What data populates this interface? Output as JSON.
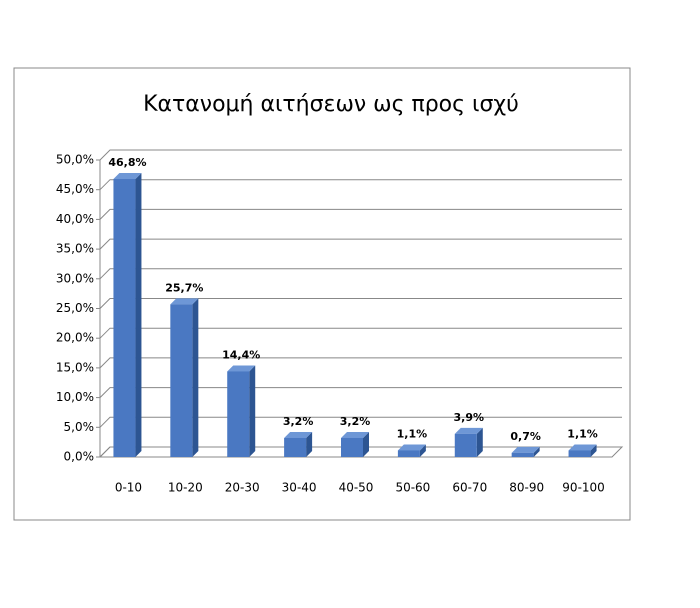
{
  "chart_data": {
    "type": "bar",
    "title": "Κατανομή αιτήσεων ως προς ισχύ",
    "categories": [
      "0-10",
      "10-20",
      "20-30",
      "30-40",
      "40-50",
      "50-60",
      "60-70",
      "80-90",
      "90-100"
    ],
    "values": [
      46.8,
      25.7,
      14.4,
      3.2,
      3.2,
      1.1,
      3.9,
      0.7,
      1.1
    ],
    "value_labels": [
      "46,8%",
      "25,7%",
      "14,4%",
      "3,2%",
      "3,2%",
      "1,1%",
      "3,9%",
      "0,7%",
      "1,1%"
    ],
    "color": "#4a78c2",
    "ylim": [
      0,
      50
    ],
    "yticks": [
      {
        "value": 0,
        "label": "0,0%"
      },
      {
        "value": 5,
        "label": "5,0%"
      },
      {
        "value": 10,
        "label": "10,0%"
      },
      {
        "value": 15,
        "label": "15,0%"
      },
      {
        "value": 20,
        "label": "20,0%"
      },
      {
        "value": 25,
        "label": "25,0%"
      },
      {
        "value": 30,
        "label": "30,0%"
      },
      {
        "value": 35,
        "label": "35,0%"
      },
      {
        "value": 40,
        "label": "40,0%"
      },
      {
        "value": 45,
        "label": "45,0%"
      },
      {
        "value": 50,
        "label": "50,0%"
      }
    ],
    "grid": true
  }
}
